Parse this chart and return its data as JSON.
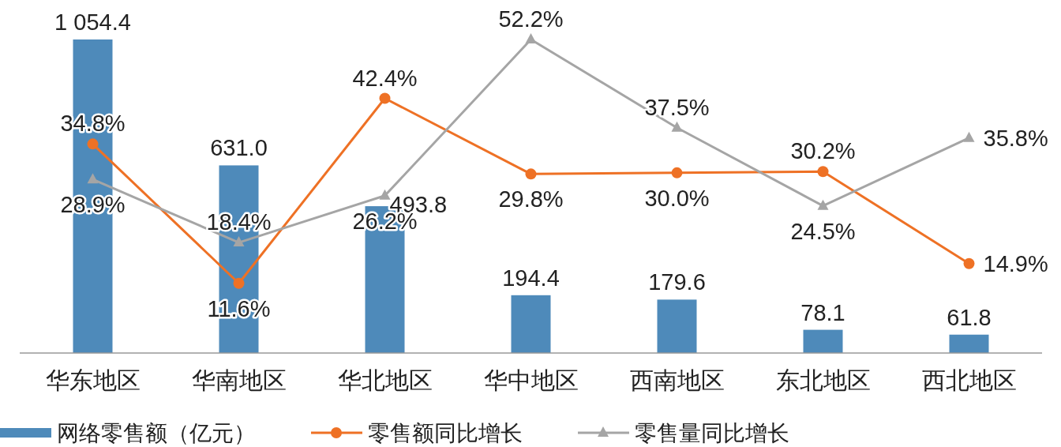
{
  "chart_data": {
    "type": "bar",
    "categories": [
      "华东地区",
      "华南地区",
      "华北地区",
      "华中地区",
      "西南地区",
      "东北地区",
      "西北地区"
    ],
    "legend": "bottom",
    "series": [
      {
        "name": "网络零售额（亿元）",
        "color": "#4e8aba",
        "values": [
          1054.4,
          631.0,
          493.8,
          194.4,
          179.6,
          78.1,
          61.8
        ],
        "value_labels": [
          "1 054.4",
          "631.0",
          "493.8",
          "194.4",
          "179.6",
          "78.1",
          "61.8"
        ]
      },
      {
        "name": "零售额同比增长",
        "type": "line",
        "axis": "y2",
        "marker": "circle",
        "color": "#ee7125",
        "values": [
          34.8,
          11.6,
          42.4,
          29.8,
          30.0,
          30.2,
          14.9
        ],
        "value_labels": [
          "34.8%",
          "11.6%",
          "42.4%",
          "29.8%",
          "30.0%",
          "30.2%",
          "14.9%"
        ]
      },
      {
        "name": "零售量同比增长",
        "type": "line",
        "axis": "y2",
        "marker": "triangle",
        "color": "#a5a5a5",
        "values": [
          28.9,
          18.4,
          26.2,
          52.2,
          37.5,
          24.5,
          35.8
        ],
        "value_labels": [
          "28.9%",
          "18.4%",
          "26.2%",
          "52.2%",
          "37.5%",
          "24.5%",
          "35.8%"
        ]
      }
    ]
  }
}
